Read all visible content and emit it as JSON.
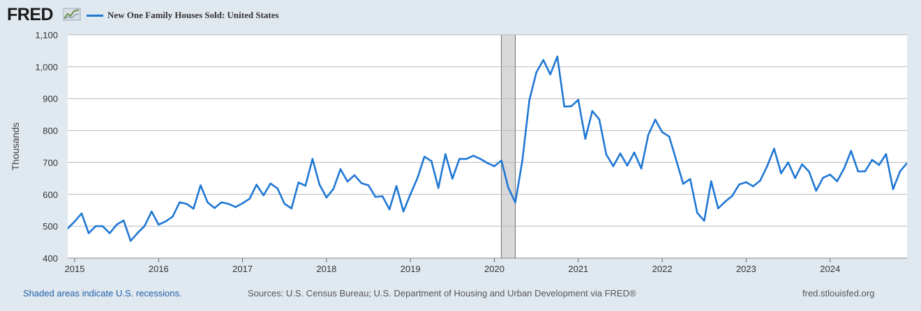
{
  "header": {
    "logo_text": "FRED",
    "series_label": "New One Family Houses Sold: United States"
  },
  "footer": {
    "recession_note": "Shaded areas indicate U.S. recessions.",
    "sources": "Sources: U.S. Census Bureau; U.S. Department of Housing and Urban Development via FRED®",
    "site": "fred.stlouisfed.org"
  },
  "colors": {
    "line": "#1f77d4",
    "background": "#e1e9f0",
    "plot_background": "#ffffff",
    "grid": "#b8b8b8",
    "recession": "#d9d9d9"
  },
  "chart_data": {
    "type": "line",
    "title": "New One Family Houses Sold: United States",
    "ylabel": "Thousands",
    "xlabel": "",
    "ylim": [
      400,
      1100
    ],
    "xlim": [
      "2014-12",
      "2024-12"
    ],
    "yticks": [
      400,
      500,
      600,
      700,
      800,
      900,
      1000,
      1100
    ],
    "ytick_labels": [
      "400",
      "500",
      "600",
      "700",
      "800",
      "900",
      "1,000",
      "1,100"
    ],
    "xticks": [
      "2015-01",
      "2016-01",
      "2017-01",
      "2018-01",
      "2019-01",
      "2020-01",
      "2021-01",
      "2022-01",
      "2023-01",
      "2024-01"
    ],
    "xtick_labels": [
      "2015",
      "2016",
      "2017",
      "2018",
      "2019",
      "2020",
      "2021",
      "2022",
      "2023",
      "2024"
    ],
    "grid": true,
    "legend": "top-left",
    "recession": {
      "start": "2020-02",
      "end": "2020-04"
    },
    "series": [
      {
        "name": "New One Family Houses Sold: United States",
        "start": "2014-12",
        "frequency": "monthly",
        "values": [
          493,
          515,
          540,
          478,
          500,
          500,
          478,
          505,
          518,
          454,
          479,
          501,
          546,
          505,
          515,
          530,
          575,
          570,
          555,
          628,
          575,
          557,
          575,
          570,
          560,
          572,
          586,
          630,
          597,
          634,
          618,
          570,
          556,
          637,
          627,
          711,
          631,
          590,
          617,
          679,
          640,
          660,
          635,
          628,
          592,
          594,
          553,
          626,
          546,
          600,
          651,
          718,
          704,
          620,
          726,
          649,
          711,
          711,
          721,
          711,
          698,
          688,
          706,
          620,
          575,
          705,
          895,
          982,
          1021,
          976,
          1032,
          875,
          876,
          896,
          774,
          861,
          835,
          725,
          688,
          728,
          690,
          731,
          681,
          786,
          834,
          795,
          781,
          707,
          633,
          648,
          542,
          517,
          641,
          556,
          577,
          595,
          631,
          638,
          625,
          643,
          688,
          743,
          666,
          700,
          651,
          694,
          671,
          611,
          652,
          662,
          641,
          681,
          736,
          672,
          672,
          708,
          692,
          726,
          616,
          672,
          698
        ]
      }
    ]
  }
}
